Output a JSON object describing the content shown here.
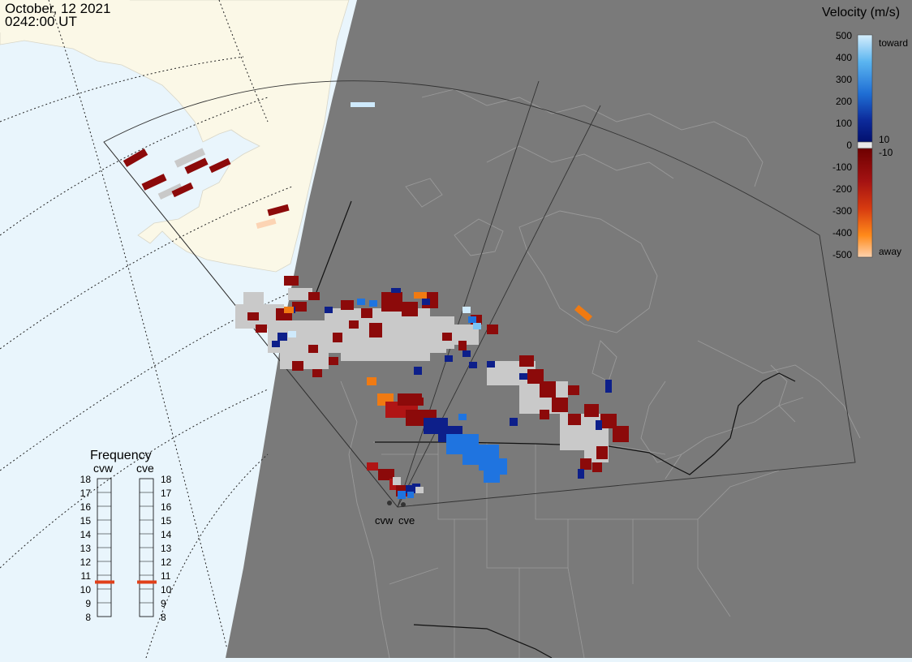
{
  "header": {
    "date": "October, 12 2021",
    "time": "0242:00 UT"
  },
  "velocity_legend": {
    "title": "Velocity (m/s)",
    "ticks": [
      "500",
      "400",
      "300",
      "200",
      "100",
      "0",
      "-100",
      "-200",
      "-300",
      "-400",
      "-500"
    ],
    "label_toward": "toward",
    "label_away": "away",
    "label_plus10": "10",
    "label_minus10": "-10"
  },
  "frequency_panel": {
    "title": "Frequency",
    "radar_left": "cvw",
    "radar_right": "cve",
    "scale": [
      "18",
      "17",
      "16",
      "15",
      "14",
      "13",
      "12",
      "11",
      "10",
      "9",
      "8"
    ],
    "cvw_frequency_mhz": 10.5,
    "cve_frequency_mhz": 10.5
  },
  "radars": [
    {
      "name": "cvw"
    },
    {
      "name": "cve"
    }
  ],
  "colors": {
    "ocean": "#e9f5fc",
    "land_day": "#fbf8e7",
    "night": "#7a7a7a",
    "ground_scatter": "#c9c9c9",
    "marker": "#e0401a"
  }
}
